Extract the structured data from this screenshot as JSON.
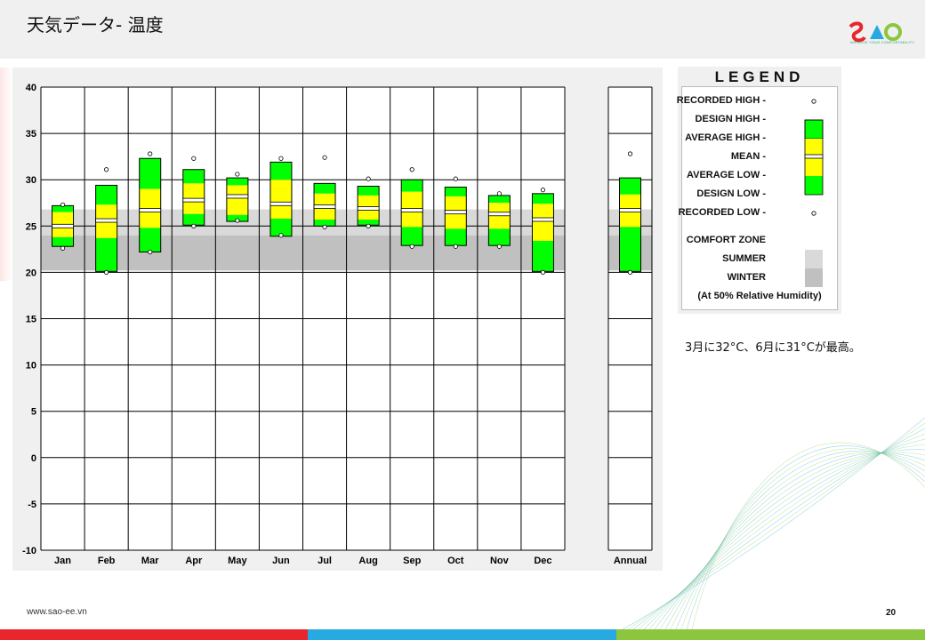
{
  "header": {
    "title": "天気データ- 温度"
  },
  "logo": {
    "alt_text": "SAO",
    "tagline": "IMPROVE YOUR COMFORTABILITY"
  },
  "colors": {
    "design": "#00ff00",
    "average": "#ffff00",
    "summer": "#d9d9d9",
    "winter": "#c0c0c0",
    "footer_red": "#e8262b",
    "footer_blue": "#27a9e1",
    "footer_green": "#8cc63f"
  },
  "legend": {
    "title": "LEGEND",
    "recorded_high": "RECORDED HIGH -",
    "design_high": "DESIGN HIGH -",
    "average_high": "AVERAGE HIGH -",
    "mean": "MEAN -",
    "average_low": "AVERAGE LOW -",
    "design_low": "DESIGN LOW -",
    "recorded_low": "RECORDED LOW -",
    "comfort_zone": "COMFORT ZONE",
    "summer": "SUMMER",
    "winter": "WINTER",
    "humidity_note": "(At 50% Relative Humidity)"
  },
  "note": "3月に32°C、6月に31°Cが最高。",
  "footer": {
    "url": "www.sao-ee.vn",
    "page": "20"
  },
  "chart_data": {
    "type": "bar",
    "ylim": [
      -10,
      40
    ],
    "yticks": [
      "40",
      "35",
      "30",
      "25",
      "20",
      "15",
      "10",
      "5",
      "0",
      "-5",
      "-10"
    ],
    "grid": true,
    "comfort_zone": {
      "summer": [
        24,
        26.8
      ],
      "winter": [
        20.2,
        24
      ]
    },
    "categories": [
      "Jan",
      "Feb",
      "Mar",
      "Apr",
      "May",
      "Jun",
      "Jul",
      "Aug",
      "Sep",
      "Oct",
      "Nov",
      "Dec",
      "Annual"
    ],
    "series": [
      {
        "name": "RECORDED HIGH",
        "values": [
          27.3,
          31.1,
          32.8,
          32.3,
          30.6,
          32.3,
          32.4,
          30.1,
          31.1,
          30.1,
          28.5,
          28.9,
          32.8
        ]
      },
      {
        "name": "DESIGN HIGH",
        "values": [
          27.2,
          29.4,
          32.3,
          31.1,
          30.2,
          31.9,
          29.6,
          29.3,
          30.0,
          29.2,
          28.3,
          28.5,
          30.2
        ]
      },
      {
        "name": "AVERAGE HIGH",
        "values": [
          26.5,
          27.3,
          29.0,
          29.6,
          29.4,
          30.0,
          28.5,
          28.3,
          28.7,
          28.2,
          27.5,
          27.4,
          28.4
        ]
      },
      {
        "name": "MEAN",
        "values": [
          25.0,
          25.6,
          26.7,
          27.8,
          28.2,
          27.4,
          27.1,
          26.9,
          26.7,
          26.5,
          26.3,
          25.7,
          26.7
        ]
      },
      {
        "name": "AVERAGE LOW",
        "values": [
          23.8,
          23.7,
          24.8,
          26.3,
          26.2,
          25.8,
          25.7,
          25.7,
          24.9,
          24.7,
          24.7,
          23.4,
          24.9
        ]
      },
      {
        "name": "DESIGN LOW",
        "values": [
          22.8,
          20.1,
          22.2,
          25.1,
          25.5,
          23.9,
          25.0,
          25.1,
          22.9,
          22.9,
          22.9,
          20.1,
          20.1
        ]
      },
      {
        "name": "RECORDED LOW",
        "values": [
          22.6,
          20.0,
          22.2,
          25.0,
          25.6,
          24.0,
          24.9,
          25.0,
          22.8,
          22.8,
          22.8,
          20.0,
          20.0
        ]
      }
    ]
  }
}
